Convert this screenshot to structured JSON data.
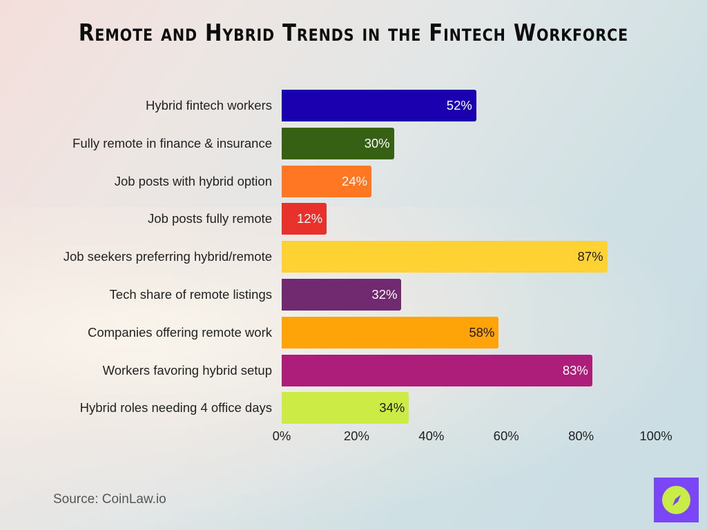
{
  "title": "Remote and Hybrid Trends in the Fintech Workforce",
  "source": "Source: CoinLaw.io",
  "logo": {
    "icon": "compass-icon",
    "bg_color": "#7a46f7",
    "fg_color": "#c9ed47"
  },
  "chart_data": {
    "type": "bar",
    "orientation": "horizontal",
    "title": "Remote and Hybrid Trends in the Fintech Workforce",
    "xlabel": "",
    "ylabel": "",
    "xlim": [
      0,
      100
    ],
    "grid": false,
    "legend": null,
    "categories": [
      "Hybrid fintech workers",
      "Fully remote in finance & insurance",
      "Job posts with hybrid option",
      "Job posts fully remote",
      "Job seekers preferring hybrid/remote",
      "Tech share of remote listings",
      "Companies offering remote work",
      "Workers favoring hybrid setup",
      "Hybrid roles needing 4 office days"
    ],
    "values": [
      52,
      30,
      24,
      12,
      87,
      32,
      58,
      83,
      34
    ],
    "value_labels": [
      "52%",
      "30%",
      "24%",
      "12%",
      "87%",
      "32%",
      "58%",
      "83%",
      "34%"
    ],
    "colors": [
      "#1b00b0",
      "#366114",
      "#ff7722",
      "#e8312a",
      "#ffd234",
      "#712a6f",
      "#ffa408",
      "#ac1e7a",
      "#cdeb45"
    ],
    "label_colors": [
      "#ffffff",
      "#ffffff",
      "#ffffff",
      "#ffffff",
      "#1a1a1a",
      "#ffffff",
      "#1a1a1a",
      "#ffffff",
      "#1a1a1a"
    ],
    "x_ticks": [
      "0%",
      "20%",
      "40%",
      "60%",
      "80%",
      "100%"
    ]
  }
}
